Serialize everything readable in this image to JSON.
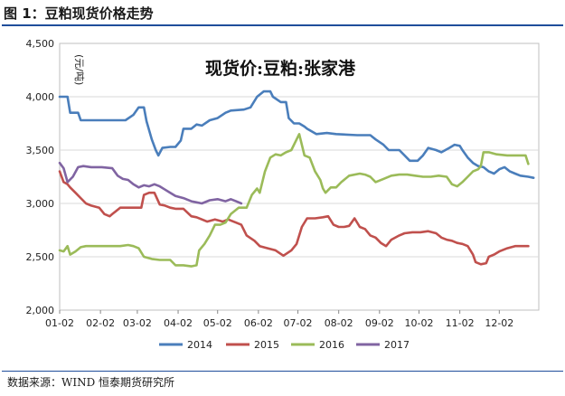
{
  "figure": {
    "title": "图 1：豆粕现货价格走势",
    "source": "数据来源：WIND  恒泰期货研究所"
  },
  "chart_data": {
    "type": "line",
    "title": "现货价:豆粕:张家港",
    "ylabel": "(元/吨)",
    "xlabel": "",
    "x_ticks": [
      "01-02",
      "02-02",
      "03-02",
      "04-02",
      "05-02",
      "06-02",
      "07-02",
      "08-02",
      "09-02",
      "10-02",
      "11-02",
      "12-02"
    ],
    "x_range_days": [
      0,
      364
    ],
    "ylim": [
      2000,
      4500
    ],
    "y_ticks": [
      "2,000",
      "2,500",
      "3,000",
      "3,500",
      "4,000",
      "4,500"
    ],
    "grid": true,
    "legend_position": "bottom",
    "series": [
      {
        "name": "2014",
        "color": "#4a7ebb",
        "points": [
          [
            0,
            4000
          ],
          [
            6,
            4000
          ],
          [
            8,
            3850
          ],
          [
            14,
            3850
          ],
          [
            16,
            3780
          ],
          [
            28,
            3780
          ],
          [
            32,
            3780
          ],
          [
            42,
            3780
          ],
          [
            50,
            3780
          ],
          [
            56,
            3830
          ],
          [
            60,
            3900
          ],
          [
            64,
            3900
          ],
          [
            66,
            3770
          ],
          [
            70,
            3600
          ],
          [
            73,
            3500
          ],
          [
            75,
            3450
          ],
          [
            78,
            3520
          ],
          [
            84,
            3530
          ],
          [
            88,
            3530
          ],
          [
            92,
            3590
          ],
          [
            94,
            3700
          ],
          [
            100,
            3700
          ],
          [
            104,
            3740
          ],
          [
            108,
            3730
          ],
          [
            114,
            3780
          ],
          [
            120,
            3800
          ],
          [
            126,
            3850
          ],
          [
            130,
            3870
          ],
          [
            140,
            3880
          ],
          [
            145,
            3900
          ],
          [
            150,
            4000
          ],
          [
            155,
            4050
          ],
          [
            160,
            4050
          ],
          [
            162,
            4000
          ],
          [
            168,
            3950
          ],
          [
            172,
            3950
          ],
          [
            174,
            3800
          ],
          [
            178,
            3750
          ],
          [
            182,
            3750
          ],
          [
            186,
            3720
          ],
          [
            188,
            3700
          ],
          [
            195,
            3650
          ],
          [
            203,
            3660
          ],
          [
            210,
            3650
          ],
          [
            226,
            3640
          ],
          [
            236,
            3640
          ],
          [
            240,
            3600
          ],
          [
            246,
            3550
          ],
          [
            250,
            3500
          ],
          [
            258,
            3500
          ],
          [
            262,
            3450
          ],
          [
            266,
            3400
          ],
          [
            272,
            3400
          ],
          [
            276,
            3450
          ],
          [
            280,
            3520
          ],
          [
            286,
            3500
          ],
          [
            290,
            3480
          ],
          [
            296,
            3520
          ],
          [
            300,
            3550
          ],
          [
            304,
            3540
          ],
          [
            306,
            3500
          ],
          [
            310,
            3430
          ],
          [
            314,
            3380
          ],
          [
            318,
            3350
          ],
          [
            322,
            3340
          ],
          [
            326,
            3300
          ],
          [
            330,
            3280
          ],
          [
            334,
            3320
          ],
          [
            338,
            3340
          ],
          [
            342,
            3300
          ],
          [
            346,
            3280
          ],
          [
            350,
            3260
          ],
          [
            356,
            3250
          ],
          [
            360,
            3240
          ]
        ]
      },
      {
        "name": "2015",
        "color": "#c0504d",
        "points": [
          [
            0,
            3300
          ],
          [
            3,
            3200
          ],
          [
            6,
            3180
          ],
          [
            8,
            3150
          ],
          [
            12,
            3100
          ],
          [
            16,
            3050
          ],
          [
            20,
            3000
          ],
          [
            24,
            2980
          ],
          [
            30,
            2960
          ],
          [
            34,
            2900
          ],
          [
            38,
            2880
          ],
          [
            40,
            2900
          ],
          [
            46,
            2960
          ],
          [
            52,
            2960
          ],
          [
            58,
            2960
          ],
          [
            62,
            2960
          ],
          [
            64,
            3080
          ],
          [
            68,
            3100
          ],
          [
            72,
            3100
          ],
          [
            76,
            2990
          ],
          [
            80,
            2980
          ],
          [
            84,
            2960
          ],
          [
            88,
            2950
          ],
          [
            94,
            2950
          ],
          [
            100,
            2880
          ],
          [
            104,
            2870
          ],
          [
            108,
            2850
          ],
          [
            112,
            2830
          ],
          [
            118,
            2850
          ],
          [
            124,
            2830
          ],
          [
            128,
            2850
          ],
          [
            134,
            2820
          ],
          [
            138,
            2800
          ],
          [
            142,
            2700
          ],
          [
            148,
            2650
          ],
          [
            152,
            2600
          ],
          [
            158,
            2580
          ],
          [
            164,
            2560
          ],
          [
            170,
            2510
          ],
          [
            176,
            2560
          ],
          [
            180,
            2620
          ],
          [
            184,
            2780
          ],
          [
            188,
            2860
          ],
          [
            194,
            2860
          ],
          [
            200,
            2870
          ],
          [
            204,
            2880
          ],
          [
            208,
            2800
          ],
          [
            212,
            2780
          ],
          [
            216,
            2780
          ],
          [
            220,
            2790
          ],
          [
            224,
            2860
          ],
          [
            228,
            2780
          ],
          [
            232,
            2760
          ],
          [
            236,
            2700
          ],
          [
            240,
            2680
          ],
          [
            244,
            2630
          ],
          [
            248,
            2600
          ],
          [
            252,
            2660
          ],
          [
            258,
            2700
          ],
          [
            262,
            2720
          ],
          [
            268,
            2730
          ],
          [
            274,
            2730
          ],
          [
            280,
            2740
          ],
          [
            286,
            2720
          ],
          [
            290,
            2680
          ],
          [
            294,
            2660
          ],
          [
            298,
            2650
          ],
          [
            302,
            2630
          ],
          [
            306,
            2620
          ],
          [
            310,
            2600
          ],
          [
            314,
            2520
          ],
          [
            316,
            2450
          ],
          [
            320,
            2430
          ],
          [
            324,
            2440
          ],
          [
            326,
            2500
          ],
          [
            330,
            2520
          ],
          [
            334,
            2550
          ],
          [
            340,
            2580
          ],
          [
            346,
            2600
          ],
          [
            352,
            2600
          ],
          [
            356,
            2600
          ]
        ]
      },
      {
        "name": "2016",
        "color": "#9bbb59",
        "points": [
          [
            0,
            2560
          ],
          [
            3,
            2550
          ],
          [
            6,
            2600
          ],
          [
            8,
            2520
          ],
          [
            12,
            2550
          ],
          [
            16,
            2590
          ],
          [
            20,
            2600
          ],
          [
            28,
            2600
          ],
          [
            36,
            2600
          ],
          [
            46,
            2600
          ],
          [
            52,
            2610
          ],
          [
            56,
            2600
          ],
          [
            60,
            2580
          ],
          [
            64,
            2500
          ],
          [
            70,
            2480
          ],
          [
            76,
            2470
          ],
          [
            84,
            2470
          ],
          [
            88,
            2420
          ],
          [
            94,
            2420
          ],
          [
            100,
            2410
          ],
          [
            104,
            2420
          ],
          [
            106,
            2560
          ],
          [
            110,
            2620
          ],
          [
            114,
            2700
          ],
          [
            118,
            2800
          ],
          [
            122,
            2800
          ],
          [
            126,
            2820
          ],
          [
            130,
            2900
          ],
          [
            136,
            2960
          ],
          [
            142,
            2960
          ],
          [
            146,
            3080
          ],
          [
            150,
            3140
          ],
          [
            152,
            3100
          ],
          [
            156,
            3300
          ],
          [
            160,
            3430
          ],
          [
            164,
            3460
          ],
          [
            168,
            3450
          ],
          [
            172,
            3480
          ],
          [
            176,
            3500
          ],
          [
            180,
            3600
          ],
          [
            182,
            3650
          ],
          [
            186,
            3450
          ],
          [
            190,
            3430
          ],
          [
            194,
            3300
          ],
          [
            198,
            3220
          ],
          [
            200,
            3140
          ],
          [
            202,
            3100
          ],
          [
            206,
            3150
          ],
          [
            210,
            3150
          ],
          [
            214,
            3200
          ],
          [
            220,
            3260
          ],
          [
            228,
            3280
          ],
          [
            232,
            3270
          ],
          [
            236,
            3250
          ],
          [
            240,
            3200
          ],
          [
            246,
            3230
          ],
          [
            252,
            3260
          ],
          [
            258,
            3270
          ],
          [
            264,
            3270
          ],
          [
            270,
            3260
          ],
          [
            276,
            3250
          ],
          [
            282,
            3250
          ],
          [
            288,
            3260
          ],
          [
            294,
            3250
          ],
          [
            298,
            3180
          ],
          [
            302,
            3160
          ],
          [
            306,
            3200
          ],
          [
            310,
            3250
          ],
          [
            314,
            3300
          ],
          [
            318,
            3320
          ],
          [
            320,
            3350
          ],
          [
            322,
            3480
          ],
          [
            326,
            3480
          ],
          [
            332,
            3460
          ],
          [
            340,
            3450
          ],
          [
            348,
            3450
          ],
          [
            354,
            3450
          ],
          [
            356,
            3370
          ]
        ]
      },
      {
        "name": "2017",
        "color": "#8064a2",
        "points": [
          [
            0,
            3380
          ],
          [
            3,
            3330
          ],
          [
            6,
            3200
          ],
          [
            10,
            3250
          ],
          [
            14,
            3340
          ],
          [
            18,
            3350
          ],
          [
            24,
            3340
          ],
          [
            32,
            3340
          ],
          [
            40,
            3330
          ],
          [
            44,
            3260
          ],
          [
            48,
            3230
          ],
          [
            52,
            3220
          ],
          [
            56,
            3180
          ],
          [
            60,
            3150
          ],
          [
            64,
            3170
          ],
          [
            68,
            3160
          ],
          [
            72,
            3180
          ],
          [
            76,
            3160
          ],
          [
            80,
            3130
          ],
          [
            84,
            3100
          ],
          [
            88,
            3070
          ],
          [
            94,
            3050
          ],
          [
            100,
            3020
          ],
          [
            104,
            3010
          ],
          [
            108,
            3000
          ],
          [
            114,
            3030
          ],
          [
            120,
            3040
          ],
          [
            126,
            3020
          ],
          [
            130,
            3040
          ],
          [
            134,
            3020
          ],
          [
            138,
            3000
          ]
        ]
      }
    ]
  }
}
